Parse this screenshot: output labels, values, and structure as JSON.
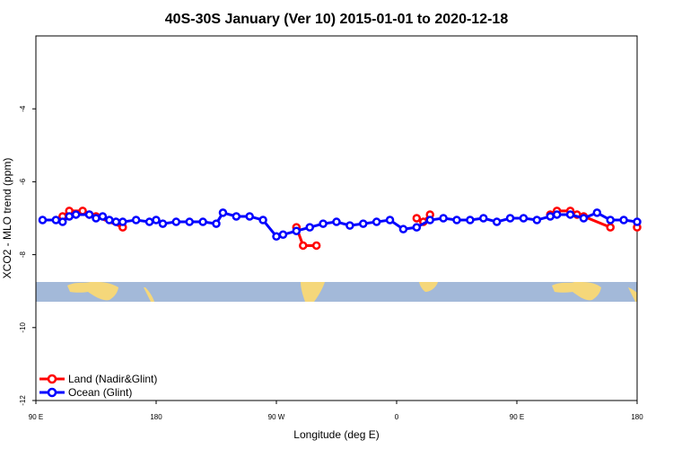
{
  "chart_data": {
    "type": "line",
    "title": "40S-30S January (Ver 10)   2015-01-01 to 2020-12-18",
    "xlabel": "Longitude (deg E)",
    "ylabel": "XCO2 - MLO trend (ppm)",
    "xlim": [
      90,
      540
    ],
    "ylim": [
      -12,
      -2
    ],
    "x_ticks": [
      {
        "value": 90,
        "label": "90 E"
      },
      {
        "value": 180,
        "label": "180"
      },
      {
        "value": 270,
        "label": "90 W"
      },
      {
        "value": 360,
        "label": "0"
      },
      {
        "value": 450,
        "label": "90 E"
      },
      {
        "value": 540,
        "label": "180"
      }
    ],
    "y_ticks": [
      {
        "value": -4,
        "label": "-4"
      },
      {
        "value": -6,
        "label": "-6"
      },
      {
        "value": -8,
        "label": "-8"
      },
      {
        "value": -10,
        "label": "-10"
      },
      {
        "value": -12,
        "label": "-12"
      }
    ],
    "legend_position": "bottom-left",
    "series": [
      {
        "name": "Land (Nadir&Glint)",
        "color": "#ff0000",
        "segments": [
          [
            [
              110,
              -6.95
            ],
            [
              115,
              -6.8
            ],
            [
              125,
              -6.8
            ],
            [
              130,
              -6.9
            ],
            [
              135,
              -6.95
            ],
            [
              145,
              -7.05
            ],
            [
              150,
              -7.1
            ],
            [
              155,
              -7.25
            ]
          ],
          [
            [
              285,
              -7.25
            ],
            [
              290,
              -7.75
            ],
            [
              300,
              -7.75
            ]
          ],
          [
            [
              110,
              -6.95
            ],
            [
              115,
              -6.8
            ],
            [
              125,
              -6.8
            ],
            [
              130,
              -6.9
            ],
            [
              135,
              -6.95
            ],
            [
              145,
              -7.05
            ],
            [
              150,
              -7.1
            ],
            [
              155,
              -7.25
            ]
          ],
          [
            [
              375,
              -7.0
            ],
            [
              380,
              -7.1
            ],
            [
              385,
              -6.9
            ]
          ],
          [
            [
              475,
              -6.9
            ],
            [
              480,
              -6.8
            ],
            [
              490,
              -6.8
            ],
            [
              495,
              -6.9
            ],
            [
              500,
              -6.95
            ],
            [
              510,
              -7.05
            ],
            [
              515,
              -7.1
            ],
            [
              520,
              -7.25
            ]
          ],
          [
            [
              535,
              -7.25
            ]
          ]
        ],
        "points_unique": [
          [
            110,
            -6.95
          ],
          [
            115,
            -6.8
          ],
          [
            125,
            -6.8
          ],
          [
            130,
            -6.9
          ],
          [
            135,
            -6.95
          ],
          [
            155,
            -7.25
          ],
          [
            285,
            -7.25
          ],
          [
            290,
            -7.75
          ],
          [
            300,
            -7.75
          ],
          [
            375,
            -7.0
          ],
          [
            380,
            -7.1
          ],
          [
            385,
            -6.9
          ],
          [
            475,
            -6.9
          ],
          [
            480,
            -6.8
          ],
          [
            490,
            -6.8
          ],
          [
            495,
            -6.9
          ],
          [
            500,
            -6.95
          ],
          [
            520,
            -7.25
          ],
          [
            540,
            -7.25
          ]
        ]
      },
      {
        "name": "Ocean (Glint)",
        "color": "#0000ff",
        "points": [
          [
            95,
            -7.05
          ],
          [
            105,
            -7.05
          ],
          [
            110,
            -7.1
          ],
          [
            115,
            -6.95
          ],
          [
            120,
            -6.9
          ],
          [
            130,
            -6.9
          ],
          [
            135,
            -7.0
          ],
          [
            140,
            -6.95
          ],
          [
            145,
            -7.05
          ],
          [
            150,
            -7.1
          ],
          [
            155,
            -7.1
          ],
          [
            165,
            -7.05
          ],
          [
            175,
            -7.1
          ],
          [
            180,
            -7.05
          ],
          [
            185,
            -7.15
          ],
          [
            195,
            -7.1
          ],
          [
            205,
            -7.1
          ],
          [
            215,
            -7.1
          ],
          [
            225,
            -7.15
          ],
          [
            230,
            -6.85
          ],
          [
            240,
            -6.95
          ],
          [
            250,
            -6.95
          ],
          [
            260,
            -7.05
          ],
          [
            270,
            -7.5
          ],
          [
            275,
            -7.45
          ],
          [
            285,
            -7.35
          ],
          [
            295,
            -7.25
          ],
          [
            305,
            -7.15
          ],
          [
            315,
            -7.1
          ],
          [
            325,
            -7.2
          ],
          [
            335,
            -7.15
          ],
          [
            345,
            -7.1
          ],
          [
            355,
            -7.05
          ],
          [
            365,
            -7.3
          ],
          [
            375,
            -7.25
          ],
          [
            385,
            -7.05
          ],
          [
            395,
            -7.0
          ],
          [
            405,
            -7.05
          ],
          [
            415,
            -7.05
          ],
          [
            425,
            -7.0
          ],
          [
            435,
            -7.1
          ],
          [
            445,
            -7.0
          ],
          [
            455,
            -7.0
          ],
          [
            465,
            -7.05
          ],
          [
            475,
            -6.95
          ],
          [
            480,
            -6.9
          ],
          [
            490,
            -6.9
          ],
          [
            500,
            -7.0
          ],
          [
            510,
            -6.85
          ],
          [
            520,
            -7.05
          ],
          [
            530,
            -7.05
          ],
          [
            540,
            -7.1
          ]
        ]
      }
    ]
  },
  "colors": {
    "ocean": "#a3b9d9",
    "land": "#f5d77a",
    "frame": "#000000"
  }
}
